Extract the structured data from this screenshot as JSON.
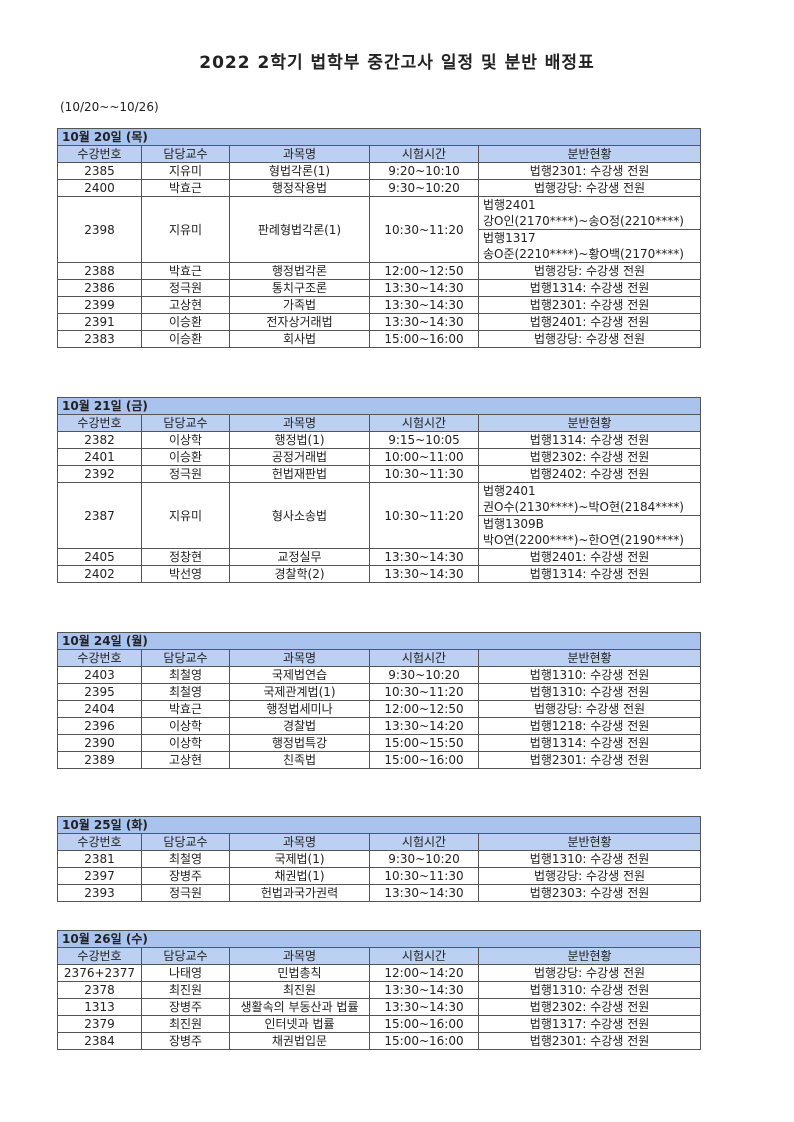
{
  "title": "2022 2학기 법학부 중간고사 일정 및 분반 배정표",
  "date_range": "(10/20~~10/26)",
  "columns": [
    "수강번호",
    "담당교수",
    "과목명",
    "시험시간",
    "분반현황"
  ],
  "colors": {
    "date_bar": "#a9c3ee",
    "header_bar": "#bcd0f2"
  },
  "days": [
    {
      "date": "10월 20일 (목)",
      "rows": [
        {
          "no": "2385",
          "prof": "지유미",
          "course": "형법각론(1)",
          "time": "9:20~10:10",
          "room": "법행2301: 수강생 전원"
        },
        {
          "no": "2400",
          "prof": "박효근",
          "course": "행정작용법",
          "time": "9:30~10:20",
          "room": "법행강당: 수강생 전원"
        },
        {
          "no": "2398",
          "prof": "지유미",
          "course": "판례형법각론(1)",
          "time": "10:30~11:20",
          "split": [
            {
              "room": "법행2401",
              "range": "강O인(2170****)~송O정(2210****)"
            },
            {
              "room": "법행1317",
              "range": "송O준(2210****)~황O백(2170****)"
            }
          ]
        },
        {
          "no": "2388",
          "prof": "박효근",
          "course": "행정법각론",
          "time": "12:00~12:50",
          "room": "법행강당: 수강생 전원"
        },
        {
          "no": "2386",
          "prof": "정극원",
          "course": "통치구조론",
          "time": "13:30~14:30",
          "room": "법행1314: 수강생 전원"
        },
        {
          "no": "2399",
          "prof": "고상현",
          "course": "가족법",
          "time": "13:30~14:30",
          "room": "법행2301: 수강생 전원"
        },
        {
          "no": "2391",
          "prof": "이승환",
          "course": "전자상거래법",
          "time": "13:30~14:30",
          "room": "법행2401: 수강생 전원"
        },
        {
          "no": "2383",
          "prof": "이승환",
          "course": "회사법",
          "time": "15:00~16:00",
          "room": "법행강당: 수강생 전원"
        }
      ]
    },
    {
      "date": "10월 21일 (금)",
      "rows": [
        {
          "no": "2382",
          "prof": "이상학",
          "course": "행정법(1)",
          "time": "9:15~10:05",
          "room": "법행1314: 수강생 전원"
        },
        {
          "no": "2401",
          "prof": "이승환",
          "course": "공정거래법",
          "time": "10:00~11:00",
          "room": "법행2302: 수강생 전원"
        },
        {
          "no": "2392",
          "prof": "정극원",
          "course": "헌법재판법",
          "time": "10:30~11:30",
          "room": "법행2402: 수강생 전원"
        },
        {
          "no": "2387",
          "prof": "지유미",
          "course": "형사소송법",
          "time": "10:30~11:20",
          "split": [
            {
              "room": "법행2401",
              "range": "권O수(2130****)~박O현(2184****)"
            },
            {
              "room": "법행1309B",
              "range": "박O연(2200****)~한O연(2190****)"
            }
          ]
        },
        {
          "no": "2405",
          "prof": "정창현",
          "course": "교정실무",
          "time": "13:30~14:30",
          "room": "법행2401: 수강생 전원"
        },
        {
          "no": "2402",
          "prof": "박선영",
          "course": "경찰학(2)",
          "time": "13:30~14:30",
          "room": "법행1314: 수강생 전원"
        }
      ]
    },
    {
      "date": "10월 24일 (월)",
      "rows": [
        {
          "no": "2403",
          "prof": "최철영",
          "course": "국제법연습",
          "time": "9:30~10:20",
          "room": "법행1310: 수강생 전원"
        },
        {
          "no": "2395",
          "prof": "최철영",
          "course": "국제관계법(1)",
          "time": "10:30~11:20",
          "room": "법행1310: 수강생 전원"
        },
        {
          "no": "2404",
          "prof": "박효근",
          "course": "행정법세미나",
          "time": "12:00~12:50",
          "room": "법행강당: 수강생 전원"
        },
        {
          "no": "2396",
          "prof": "이상학",
          "course": "경찰법",
          "time": "13:30~14:20",
          "room": "법행1218: 수강생 전원"
        },
        {
          "no": "2390",
          "prof": "이상학",
          "course": "행정법특강",
          "time": "15:00~15:50",
          "room": "법행1314: 수강생 전원"
        },
        {
          "no": "2389",
          "prof": "고상현",
          "course": "친족법",
          "time": "15:00~16:00",
          "room": "법행2301: 수강생 전원"
        }
      ]
    },
    {
      "date": "10월 25일 (화)",
      "rows": [
        {
          "no": "2381",
          "prof": "최철영",
          "course": "국제법(1)",
          "time": "9:30~10:20",
          "room": "법행1310: 수강생 전원"
        },
        {
          "no": "2397",
          "prof": "장병주",
          "course": "채권법(1)",
          "time": "10:30~11:30",
          "room": "법행강당: 수강생 전원"
        },
        {
          "no": "2393",
          "prof": "정극원",
          "course": "헌법과국가권력",
          "time": "13:30~14:30",
          "room": "법행2303: 수강생 전원"
        }
      ]
    },
    {
      "date": "10월 26일 (수)",
      "rows": [
        {
          "no": "2376+2377",
          "prof": "나태영",
          "course": "민법총칙",
          "time": "12:00~14:20",
          "room": "법행강당: 수강생 전원"
        },
        {
          "no": "2378",
          "prof": "최진원",
          "course": "최진원",
          "time": "13:30~14:30",
          "room": "법행1310: 수강생 전원"
        },
        {
          "no": "1313",
          "prof": "장병주",
          "course": "생활속의 부동산과 법률",
          "time": "13:30~14:30",
          "room": "법행2302: 수강생 전원"
        },
        {
          "no": "2379",
          "prof": "최진원",
          "course": "인터넷과 법률",
          "time": "15:00~16:00",
          "room": "법행1317: 수강생 전원"
        },
        {
          "no": "2384",
          "prof": "장병주",
          "course": "채권법입문",
          "time": "15:00~16:00",
          "room": "법행2301: 수강생 전원"
        }
      ]
    }
  ]
}
